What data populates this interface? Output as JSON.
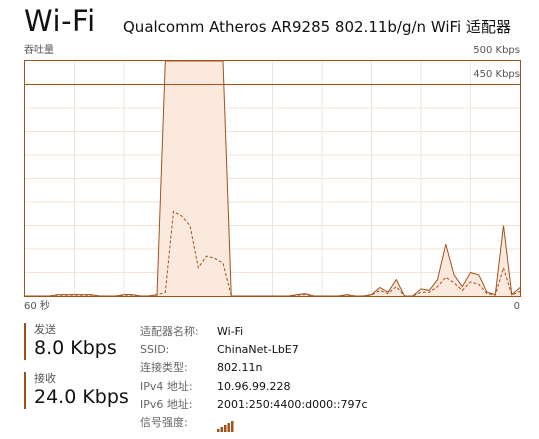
{
  "header": {
    "title": "Wi-Fi",
    "adapter_name": "Qualcomm Atheros AR9285 802.11b/g/n WiFi 适配器"
  },
  "graph": {
    "throughput_label": "吞吐量",
    "max_label": "500 Kbps",
    "line_label": "450 Kbps",
    "time_left_label": "60 秒",
    "time_right_label": "0",
    "accent_color": "#a0521d"
  },
  "chart_data": {
    "type": "area",
    "xlabel": "",
    "ylabel": "",
    "x": [
      60,
      59,
      58,
      57,
      56,
      55,
      54,
      53,
      52,
      51,
      50,
      49,
      48,
      47,
      46,
      45,
      44,
      43,
      42,
      41,
      40,
      39,
      38,
      37,
      36,
      35,
      34,
      33,
      32,
      31,
      30,
      29,
      28,
      27,
      26,
      25,
      24,
      23,
      22,
      21,
      20,
      19,
      18,
      17,
      16,
      15,
      14,
      13,
      12,
      11,
      10,
      9,
      8,
      7,
      6,
      5,
      4,
      3,
      2,
      1,
      0
    ],
    "xlim": [
      60,
      0
    ],
    "ylim": [
      0,
      500
    ],
    "reference_line": 450,
    "series": [
      {
        "values": [
          0,
          0,
          0,
          0,
          3,
          3,
          3,
          3,
          3,
          0,
          0,
          0,
          3,
          3,
          0,
          0,
          3,
          500,
          500,
          500,
          500,
          500,
          500,
          500,
          500,
          0,
          0,
          0,
          0,
          0,
          0,
          0,
          0,
          3,
          5,
          0,
          0,
          0,
          0,
          3,
          0,
          0,
          3,
          18,
          8,
          35,
          0,
          0,
          15,
          12,
          35,
          110,
          45,
          20,
          50,
          45,
          8,
          3,
          150,
          3,
          18
        ]
      },
      {
        "values": [
          0,
          0,
          0,
          0,
          2,
          2,
          2,
          2,
          2,
          0,
          0,
          0,
          2,
          2,
          0,
          0,
          2,
          8,
          180,
          170,
          150,
          60,
          85,
          80,
          70,
          0,
          0,
          0,
          0,
          0,
          0,
          0,
          0,
          2,
          3,
          0,
          0,
          0,
          0,
          2,
          0,
          0,
          2,
          12,
          5,
          20,
          0,
          0,
          8,
          8,
          20,
          40,
          28,
          12,
          30,
          25,
          5,
          2,
          60,
          2,
          10
        ]
      }
    ]
  },
  "metrics": {
    "send": {
      "label": "发送",
      "value": "8.0 Kbps"
    },
    "receive": {
      "label": "接收",
      "value": "24.0 Kbps"
    }
  },
  "details": [
    {
      "key": "适配器名称:",
      "value": "Wi-Fi"
    },
    {
      "key": "SSID:",
      "value": "ChinaNet-LbE7"
    },
    {
      "key": "连接类型:",
      "value": "802.11n"
    },
    {
      "key": "IPv4 地址:",
      "value": "10.96.99.228"
    },
    {
      "key": "IPv6 地址:",
      "value": "2001:250:4400:d000::797c"
    },
    {
      "key": "信号强度:",
      "value": ""
    }
  ],
  "signal": {
    "icon": "signal-strength-icon",
    "bars_filled": 5,
    "bars_total": 5
  }
}
